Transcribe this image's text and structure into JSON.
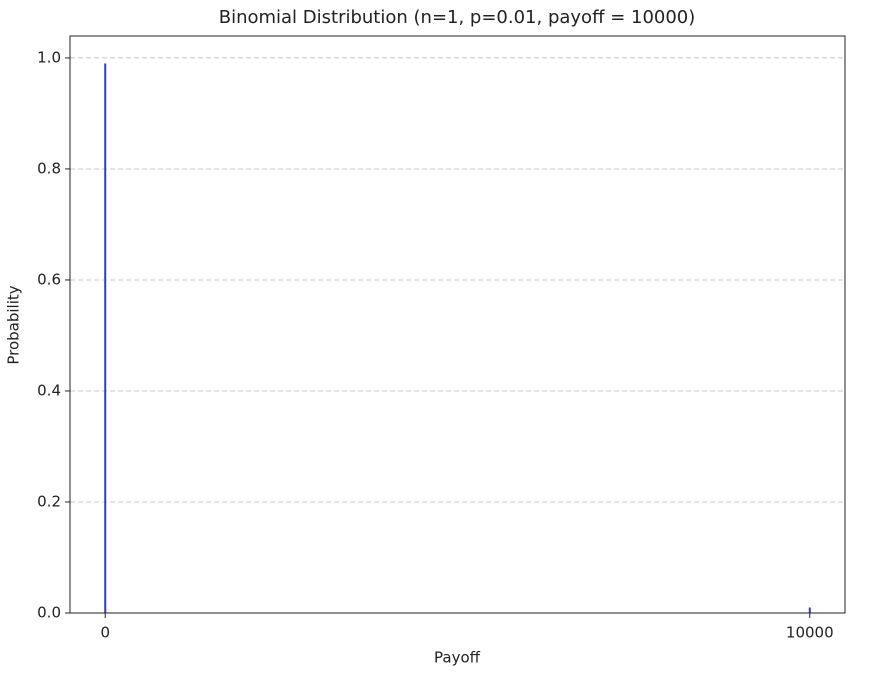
{
  "chart_data": {
    "type": "bar",
    "title": "Binomial Distribution (n=1, p=0.01, payoff = 10000)",
    "x_label": "Payoff",
    "y_label": "Probability",
    "x": [
      0,
      10000
    ],
    "values": [
      0.99,
      0.01
    ],
    "color": "#2b3fd6",
    "xlim": [
      -500,
      10500
    ],
    "xticks": [
      0,
      10000
    ],
    "ylim": [
      0,
      1.0395
    ],
    "yticks": [
      {
        "value": 0,
        "label": "0.0"
      },
      0.2,
      0.4,
      0.6,
      0.8,
      {
        "value": 1,
        "label": "1.0"
      }
    ],
    "grid": "y"
  }
}
